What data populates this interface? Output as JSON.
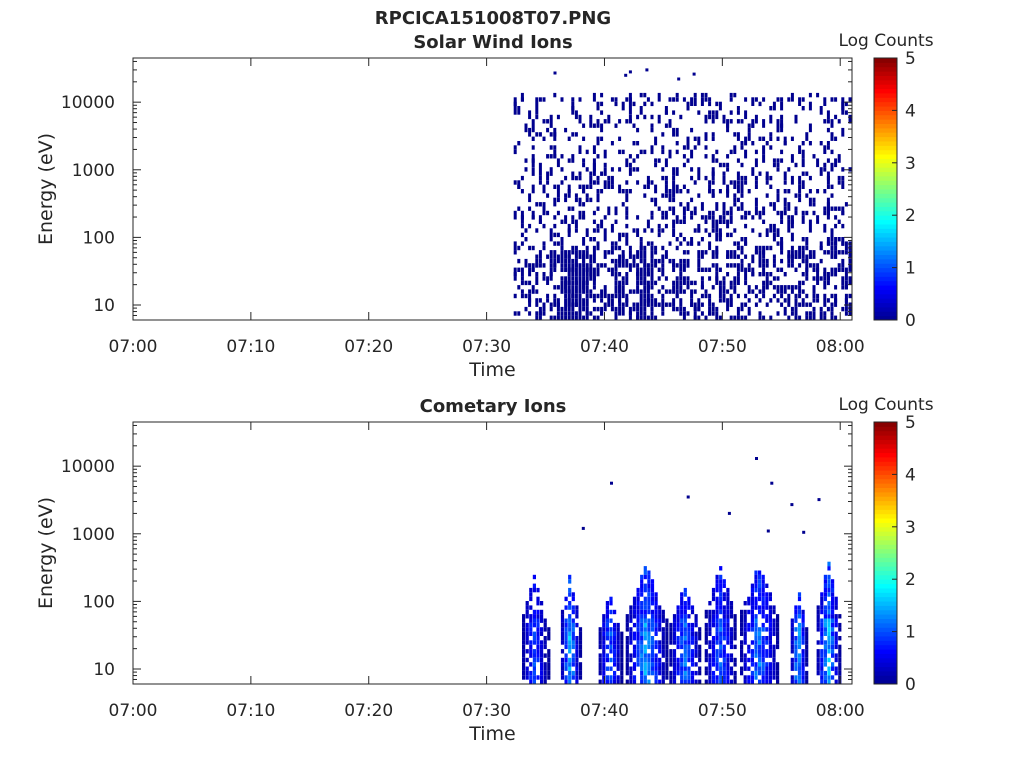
{
  "figure_title": "RPCICA151008T07.PNG",
  "colormap": [
    "#00008f",
    "#0000ff",
    "#0080ff",
    "#00ffff",
    "#80ff80",
    "#ffff00",
    "#ff8000",
    "#ff0000",
    "#800000"
  ],
  "chart_data": [
    {
      "type": "heatmap",
      "title": "Solar Wind Ions",
      "xlabel": "Time",
      "ylabel": "Energy (eV)",
      "x_ticks": [
        "07:00",
        "07:10",
        "07:20",
        "07:30",
        "07:40",
        "07:50",
        "08:00"
      ],
      "xlim_minutes": [
        0,
        61
      ],
      "y_scale": "log",
      "y_ticks": [
        "10",
        "100",
        "1000",
        "10000"
      ],
      "ylim_ev": [
        6,
        45000
      ],
      "colorbar": {
        "label": "Log Counts",
        "range": [
          0,
          5
        ],
        "ticks": [
          "0",
          "1",
          "2",
          "3",
          "4",
          "5"
        ]
      },
      "data_start_minute": 32.3,
      "data_end_minute": 61,
      "dominant_log_counts": 0,
      "dense_bands": [
        {
          "minute_start": 36.5,
          "minute_end": 38.5,
          "ev_min": 6,
          "ev_max": 60
        },
        {
          "minute_start": 42.5,
          "minute_end": 44,
          "ev_min": 6,
          "ev_max": 60
        }
      ],
      "isolated_points": [
        {
          "minute": 35.8,
          "ev": 27000
        },
        {
          "minute": 41.8,
          "ev": 25000
        },
        {
          "minute": 42.2,
          "ev": 28000
        },
        {
          "minute": 43.6,
          "ev": 30000
        },
        {
          "minute": 46.3,
          "ev": 22000
        },
        {
          "minute": 47.6,
          "ev": 26000
        }
      ]
    },
    {
      "type": "heatmap",
      "title": "Cometary Ions",
      "xlabel": "Time",
      "ylabel": "Energy (eV)",
      "x_ticks": [
        "07:00",
        "07:10",
        "07:20",
        "07:30",
        "07:40",
        "07:50",
        "08:00"
      ],
      "xlim_minutes": [
        0,
        61
      ],
      "y_scale": "log",
      "y_ticks": [
        "10",
        "100",
        "1000",
        "10000"
      ],
      "ylim_ev": [
        6,
        45000
      ],
      "colorbar": {
        "label": "Log Counts",
        "range": [
          0,
          5
        ],
        "ticks": [
          "0",
          "1",
          "2",
          "3",
          "4",
          "5"
        ]
      },
      "bursts": [
        {
          "minute_start": 33,
          "minute_end": 35.2,
          "ev_max": 230,
          "peak_log_counts": 1.2
        },
        {
          "minute_start": 36.3,
          "minute_end": 37.9,
          "ev_max": 260,
          "peak_log_counts": 1.9
        },
        {
          "minute_start": 39.5,
          "minute_end": 41.5,
          "ev_max": 120,
          "peak_log_counts": 1.3
        },
        {
          "minute_start": 41.8,
          "minute_end": 45.3,
          "ev_max": 320,
          "peak_log_counts": 1.7
        },
        {
          "minute_start": 45.5,
          "minute_end": 48.2,
          "ev_max": 160,
          "peak_log_counts": 1.4
        },
        {
          "minute_start": 48.5,
          "minute_end": 51.2,
          "ev_max": 320,
          "peak_log_counts": 1.3
        },
        {
          "minute_start": 51.5,
          "minute_end": 54.8,
          "ev_max": 340,
          "peak_log_counts": 1.5
        },
        {
          "minute_start": 55.8,
          "minute_end": 57.2,
          "ev_max": 150,
          "peak_log_counts": 1.9
        },
        {
          "minute_start": 58,
          "minute_end": 60,
          "ev_max": 380,
          "peak_log_counts": 1.9
        }
      ],
      "isolated_points": [
        {
          "minute": 38.2,
          "ev": 1200
        },
        {
          "minute": 40.6,
          "ev": 5600
        },
        {
          "minute": 47.1,
          "ev": 3500
        },
        {
          "minute": 50.6,
          "ev": 2000
        },
        {
          "minute": 52.9,
          "ev": 13000
        },
        {
          "minute": 53.9,
          "ev": 1100
        },
        {
          "minute": 54.2,
          "ev": 5600
        },
        {
          "minute": 55.9,
          "ev": 2700
        },
        {
          "minute": 56.9,
          "ev": 1050
        },
        {
          "minute": 58.2,
          "ev": 3200
        }
      ]
    }
  ]
}
